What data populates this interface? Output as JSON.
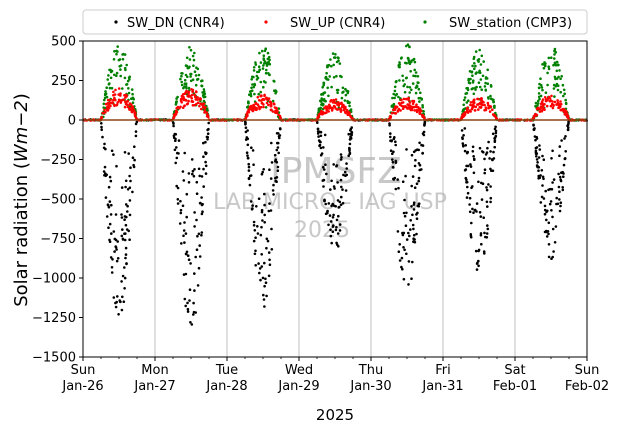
{
  "chart_data": {
    "type": "scatter",
    "xlabel": "2025",
    "ylabel_main": "Solar radiation (",
    "ylabel_unit": "Wm−2",
    "ylabel_close": ")",
    "ylim": [
      -1500,
      500
    ],
    "xlim": [
      "2025-01-26",
      "2025-02-02"
    ],
    "yticks": [
      {
        "value": 500,
        "label": "500"
      },
      {
        "value": 250,
        "label": "250"
      },
      {
        "value": 0,
        "label": "0"
      },
      {
        "value": -250,
        "label": "−250"
      },
      {
        "value": -500,
        "label": "−500"
      },
      {
        "value": -750,
        "label": "−750"
      },
      {
        "value": -1000,
        "label": "−1000"
      },
      {
        "value": -1250,
        "label": "−1250"
      },
      {
        "value": -1500,
        "label": "−1500"
      }
    ],
    "xticks": [
      {
        "day": 0,
        "line1": "Sun",
        "line2": "Jan-26"
      },
      {
        "day": 1,
        "line1": "Mon",
        "line2": "Jan-27"
      },
      {
        "day": 2,
        "line1": "Tue",
        "line2": "Jan-28"
      },
      {
        "day": 3,
        "line1": "Wed",
        "line2": "Jan-29"
      },
      {
        "day": 4,
        "line1": "Thu",
        "line2": "Jan-30"
      },
      {
        "day": 5,
        "line1": "Fri",
        "line2": "Jan-31"
      },
      {
        "day": 6,
        "line1": "Sat",
        "line2": "Feb-01"
      },
      {
        "day": 7,
        "line1": "Sun",
        "line2": "Feb-02"
      }
    ],
    "grid": "vertical at daily ticks",
    "legend_position": "top, above plot",
    "watermark": [
      "LAB MICRO - IAG USP",
      "2025"
    ],
    "watermark_logo_text": "IPMSFZ",
    "daily_peaks": {
      "days": [
        "Jan-26",
        "Jan-27",
        "Jan-28",
        "Jan-29",
        "Jan-30",
        "Jan-31",
        "Feb-01"
      ],
      "SW_station (CMP3)": [
        480,
        470,
        470,
        440,
        480,
        450,
        480
      ],
      "SW_UP (CNR4)": [
        200,
        200,
        160,
        130,
        140,
        140,
        160
      ],
      "SW_DN (CNR4)": [
        -1260,
        -1340,
        -1210,
        -850,
        -1110,
        -980,
        -880
      ]
    },
    "series": [
      {
        "name": "SW_DN (CNR4)",
        "color": "#000000"
      },
      {
        "name": "SW_UP (CNR4)",
        "color": "#ff0000"
      },
      {
        "name": "SW_station (CMP3)",
        "color": "#008000"
      }
    ],
    "zero_line_color": "#8b4513"
  }
}
